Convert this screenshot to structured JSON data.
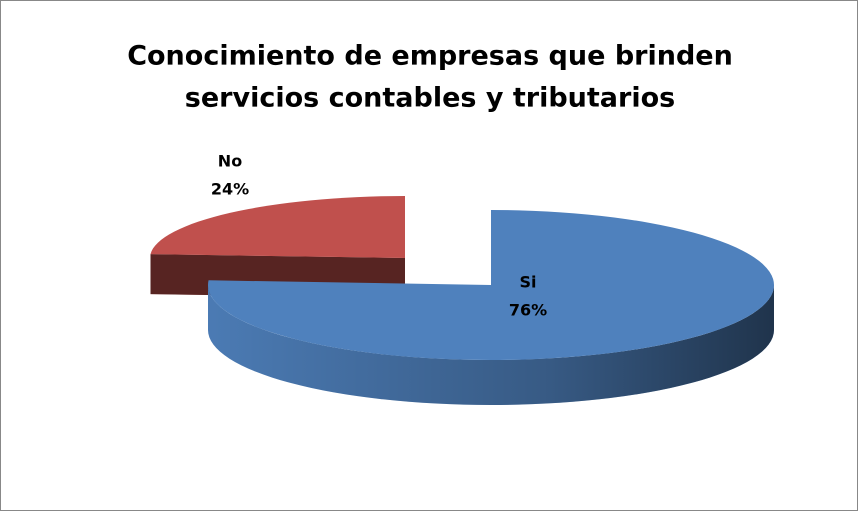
{
  "chart_data": {
    "type": "pie",
    "title": [
      "Conocimiento de empresas que brinden",
      "servicios contables y tributarios"
    ],
    "categories": [
      "Si",
      "No"
    ],
    "values": [
      76,
      24
    ],
    "value_labels": [
      "76%",
      "24%"
    ],
    "colors": [
      "#4f81bd",
      "#c0504d"
    ]
  }
}
